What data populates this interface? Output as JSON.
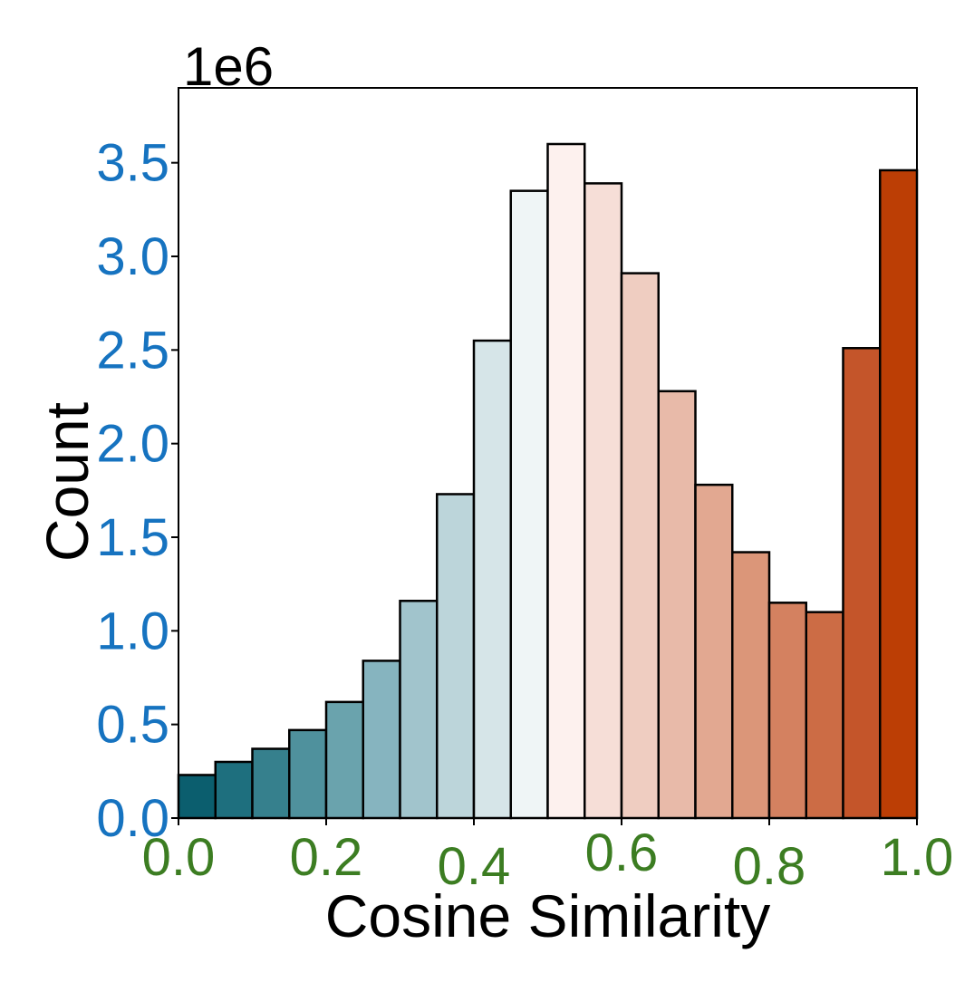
{
  "chart_data": {
    "type": "bar",
    "title": "",
    "xlabel": "Cosine Similarity",
    "ylabel": "Count",
    "y_offset_label": "1e6",
    "xlim": [
      0.0,
      1.0
    ],
    "ylim": [
      0.0,
      3.9
    ],
    "grid": false,
    "bin_edges": [
      0.0,
      0.05,
      0.1,
      0.15,
      0.2,
      0.25,
      0.3,
      0.35,
      0.4,
      0.45,
      0.5,
      0.55,
      0.6,
      0.65,
      0.7,
      0.75,
      0.8,
      0.85,
      0.9,
      0.95,
      1.0
    ],
    "values": [
      0.23,
      0.3,
      0.37,
      0.47,
      0.62,
      0.84,
      1.16,
      1.73,
      2.55,
      3.35,
      3.6,
      3.39,
      2.91,
      2.28,
      1.78,
      1.42,
      1.15,
      1.1,
      2.51,
      3.46
    ],
    "bar_colors": [
      "#0b5e6e",
      "#1e6f7e",
      "#36808d",
      "#4f919d",
      "#6aa3ad",
      "#86b4bf",
      "#a1c4cc",
      "#bcd5da",
      "#d6e5e8",
      "#eff5f6",
      "#fdf1ee",
      "#f6ded7",
      "#efcdc1",
      "#e8baa9",
      "#e2a891",
      "#db9679",
      "#d48160",
      "#cc6c45",
      "#c4552a",
      "#bc3e05"
    ],
    "x_ticks": [
      "0.0",
      "0.2",
      "0.4",
      "0.6",
      "0.8",
      "1.0"
    ],
    "y_ticks": [
      "0.0",
      "0.5",
      "1.0",
      "1.5",
      "2.0",
      "2.5",
      "3.0",
      "3.5"
    ]
  },
  "colors": {
    "y_tick_color": "#1673c0",
    "x_tick_color": "#3c7d22",
    "axis_color": "#000000",
    "bar_edge": "#000000"
  }
}
